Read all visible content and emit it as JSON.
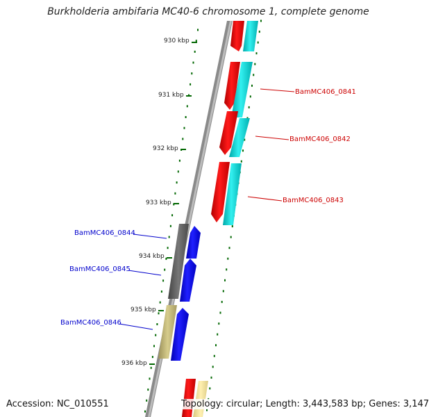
{
  "title": "Burkholderia ambifaria MC40-6 chromosome 1, complete genome",
  "accession": "Accession: NC_010551",
  "topology": "Topology: circular; Length: 3,443,583 bp; Genes: 3,147",
  "kbp_ticks": [
    "930 kbp",
    "931 kbp",
    "932 kbp",
    "933 kbp",
    "934 kbp",
    "935 kbp",
    "936 kbp"
  ],
  "genes": [
    {
      "label": "BamMC406_0841",
      "strand": "forward",
      "color": "#cc0000"
    },
    {
      "label": "BamMC406_0842",
      "strand": "forward",
      "color": "#cc0000"
    },
    {
      "label": "BamMC406_0843",
      "strand": "forward",
      "color": "#cc0000"
    },
    {
      "label": "BamMC406_0844",
      "strand": "reverse",
      "color": "#0000cc"
    },
    {
      "label": "BamMC406_0845",
      "strand": "reverse",
      "color": "#0000cc"
    },
    {
      "label": "BamMC406_0846",
      "strand": "reverse",
      "color": "#0000cc"
    }
  ],
  "colors": {
    "forward_gene": "#ff0000",
    "forward_cds": "#00cccc",
    "reverse_gene": "#0000ff",
    "reverse_cds_dark": "#555555",
    "reverse_cds_tan": "#b8ad6a",
    "backbone": "#888888",
    "tick": "#006600"
  }
}
